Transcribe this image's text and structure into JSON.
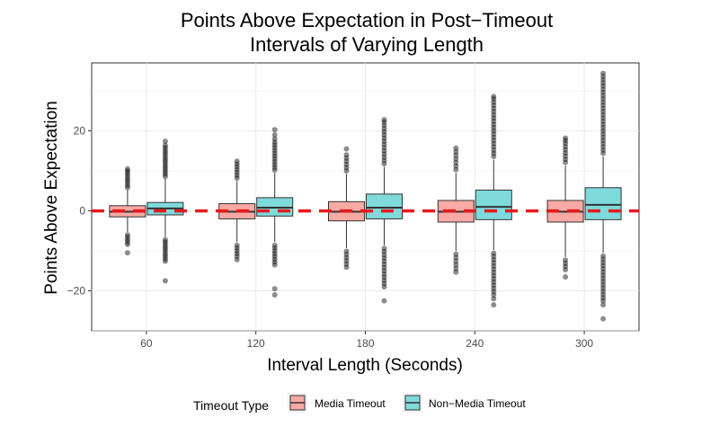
{
  "chart_data": {
    "type": "box",
    "title_lines": [
      "Points Above Expectation in Post−Timeout",
      "Intervals of Varying Length"
    ],
    "xlabel": "Interval Length (Seconds)",
    "ylabel": "Points Above Expectation",
    "categories": [
      "60",
      "120",
      "180",
      "240",
      "300"
    ],
    "y_ticks": [
      20,
      0,
      -20
    ],
    "y_tick_labels": [
      "20",
      "0",
      "−20"
    ],
    "ylim": [
      -30,
      37
    ],
    "grid": true,
    "reference_line": {
      "y": 0,
      "color": "#e41a1c",
      "style": "dashed"
    },
    "legend": {
      "title": "Timeout Type",
      "placement": "bottom",
      "entries": [
        "Media Timeout",
        "Non−Media Timeout"
      ]
    },
    "colors": {
      "Media Timeout": "#f8a9a4",
      "Non−Media Timeout": "#7fdadc"
    },
    "series": [
      {
        "name": "Media Timeout",
        "boxes": [
          {
            "q1": -1.5,
            "median": -0.2,
            "q3": 1.3,
            "whisker_low": -5.3,
            "whisker_high": 5.2,
            "outliers": [
              5.8,
              6.4,
              7.0,
              7.6,
              8.2,
              8.8,
              9.4,
              10.0,
              10.5,
              -6.0,
              -6.6,
              -7.2,
              -7.8,
              -8.4,
              -10.5
            ]
          },
          {
            "q1": -2.0,
            "median": -0.2,
            "q3": 1.8,
            "whisker_low": -7.8,
            "whisker_high": 7.5,
            "outliers": [
              8.2,
              8.9,
              9.6,
              10.3,
              11.0,
              11.7,
              12.4,
              -8.6,
              -9.3,
              -10.0,
              -10.7,
              -11.4,
              -12.2
            ]
          },
          {
            "q1": -2.5,
            "median": -0.2,
            "q3": 2.3,
            "whisker_low": -9.3,
            "whisker_high": 9.2,
            "outliers": [
              10.0,
              10.8,
              11.6,
              12.4,
              13.2,
              14.0,
              15.5,
              -10.1,
              -10.9,
              -11.7,
              -12.5,
              -13.3,
              -14.1
            ]
          },
          {
            "q1": -2.8,
            "median": -0.2,
            "q3": 2.6,
            "whisker_low": -10.0,
            "whisker_high": 9.5,
            "outliers": [
              10.3,
              11.2,
              12.1,
              13.0,
              13.9,
              14.8,
              15.7,
              -10.8,
              -11.7,
              -12.6,
              -13.5,
              -14.4,
              -15.3
            ]
          },
          {
            "q1": -2.8,
            "median": -0.2,
            "q3": 2.6,
            "whisker_low": -11.5,
            "whisker_high": 11.3,
            "outliers": [
              12.1,
              12.9,
              13.7,
              14.5,
              15.3,
              16.1,
              16.9,
              17.6,
              18.2,
              -12.3,
              -13.1,
              -13.9,
              -14.7,
              -16.5
            ]
          }
        ]
      },
      {
        "name": "Non−Media Timeout",
        "boxes": [
          {
            "q1": -1.0,
            "median": 0.6,
            "q3": 2.1,
            "whisker_low": -6.5,
            "whisker_high": 8.0,
            "outliers": [
              8.6,
              9.2,
              9.8,
              10.4,
              11.0,
              11.6,
              12.2,
              12.8,
              13.4,
              14.0,
              14.6,
              15.2,
              15.8,
              16.4,
              17.4,
              -7.2,
              -7.8,
              -8.4,
              -9.0,
              -9.6,
              -10.2,
              -10.8,
              -11.4,
              -12.0,
              -12.6,
              -17.5
            ]
          },
          {
            "q1": -1.3,
            "median": 0.8,
            "q3": 3.3,
            "whisker_low": -7.8,
            "whisker_high": 9.5,
            "outliers": [
              10.2,
              10.9,
              11.6,
              12.3,
              13.0,
              13.7,
              14.4,
              15.1,
              15.8,
              16.5,
              17.2,
              18.0,
              19.0,
              20.3,
              -8.6,
              -9.3,
              -10.0,
              -10.7,
              -11.4,
              -12.1,
              -12.8,
              -13.5,
              -19.5,
              -21.0
            ]
          },
          {
            "q1": -2.0,
            "median": 0.8,
            "q3": 4.2,
            "whisker_low": -8.6,
            "whisker_high": 11.0,
            "outliers": [
              11.8,
              12.6,
              13.4,
              14.2,
              15.0,
              15.8,
              16.6,
              17.4,
              18.2,
              19.0,
              19.8,
              20.6,
              21.4,
              22.2,
              22.8,
              -9.4,
              -10.2,
              -11.0,
              -11.8,
              -12.6,
              -13.4,
              -14.2,
              -15.0,
              -15.8,
              -16.6,
              -17.4,
              -18.2,
              -19.0,
              -22.5
            ]
          },
          {
            "q1": -2.2,
            "median": 1.0,
            "q3": 5.2,
            "whisker_low": -9.8,
            "whisker_high": 12.8,
            "outliers": [
              13.6,
              14.4,
              15.2,
              16.0,
              16.8,
              17.6,
              18.4,
              19.2,
              20.0,
              20.8,
              21.6,
              22.4,
              23.2,
              24.0,
              24.8,
              25.6,
              26.4,
              27.2,
              28.0,
              28.6,
              -10.6,
              -11.4,
              -12.2,
              -13.0,
              -13.8,
              -14.6,
              -15.4,
              -16.2,
              -17.0,
              -17.8,
              -18.6,
              -19.4,
              -20.2,
              -21.0,
              -22.0,
              -23.5
            ]
          },
          {
            "q1": -2.2,
            "median": 1.5,
            "q3": 5.8,
            "whisker_low": -10.5,
            "whisker_high": 13.6,
            "outliers": [
              14.4,
              15.2,
              16.0,
              16.8,
              17.6,
              18.4,
              19.2,
              20.0,
              20.8,
              21.6,
              22.4,
              23.2,
              24.0,
              24.8,
              25.6,
              26.4,
              27.2,
              28.0,
              28.8,
              29.6,
              30.4,
              31.2,
              32.0,
              32.8,
              33.6,
              34.4,
              -11.3,
              -12.1,
              -12.9,
              -13.7,
              -14.5,
              -15.3,
              -16.1,
              -16.9,
              -17.7,
              -18.5,
              -19.3,
              -20.1,
              -20.9,
              -21.7,
              -22.5,
              -23.5,
              -27.0
            ]
          }
        ]
      }
    ]
  }
}
